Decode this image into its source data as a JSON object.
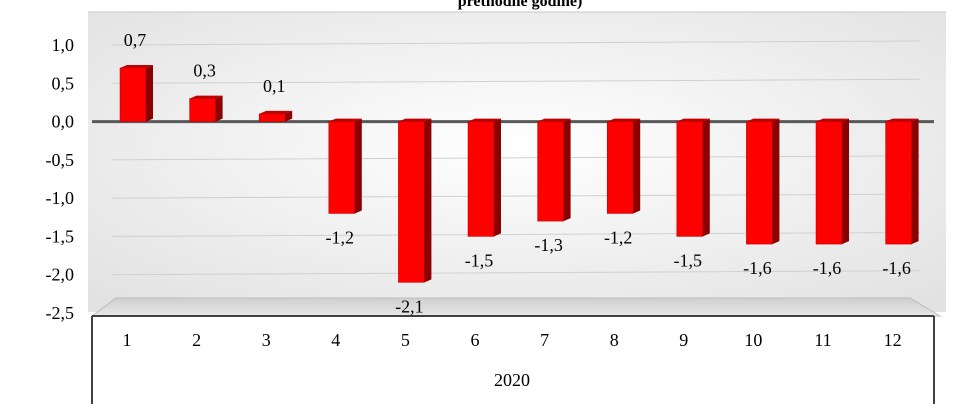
{
  "chart_data": {
    "type": "bar",
    "title": "prethodne godine)",
    "categories": [
      "1",
      "2",
      "3",
      "4",
      "5",
      "6",
      "7",
      "8",
      "9",
      "10",
      "11",
      "12"
    ],
    "group_label": "2020",
    "series": [
      {
        "values": [
          0.7,
          0.3,
          0.1,
          -1.2,
          -2.1,
          -1.5,
          -1.3,
          -1.2,
          -1.5,
          -1.6,
          -1.6,
          -1.6
        ]
      }
    ],
    "data_labels": [
      "0,7",
      "0,3",
      "0,1",
      "-1,2",
      "-2,1",
      "-1,5",
      "-1,3",
      "-1,2",
      "-1,5",
      "-1,6",
      "-1,6",
      "-1,6"
    ],
    "y_ticks": [
      "1,0",
      "0,5",
      "0,0",
      "-0,5",
      "-1,0",
      "-1,5",
      "-2,0",
      "-2,5"
    ],
    "y_tick_values": [
      1.0,
      0.5,
      0.0,
      -0.5,
      -1.0,
      -1.5,
      -2.0,
      -2.5
    ],
    "ylim": [
      -2.5,
      1.0
    ],
    "grid": true,
    "bar_color": "#ff0000",
    "bar_side_color": "#8b0000"
  }
}
